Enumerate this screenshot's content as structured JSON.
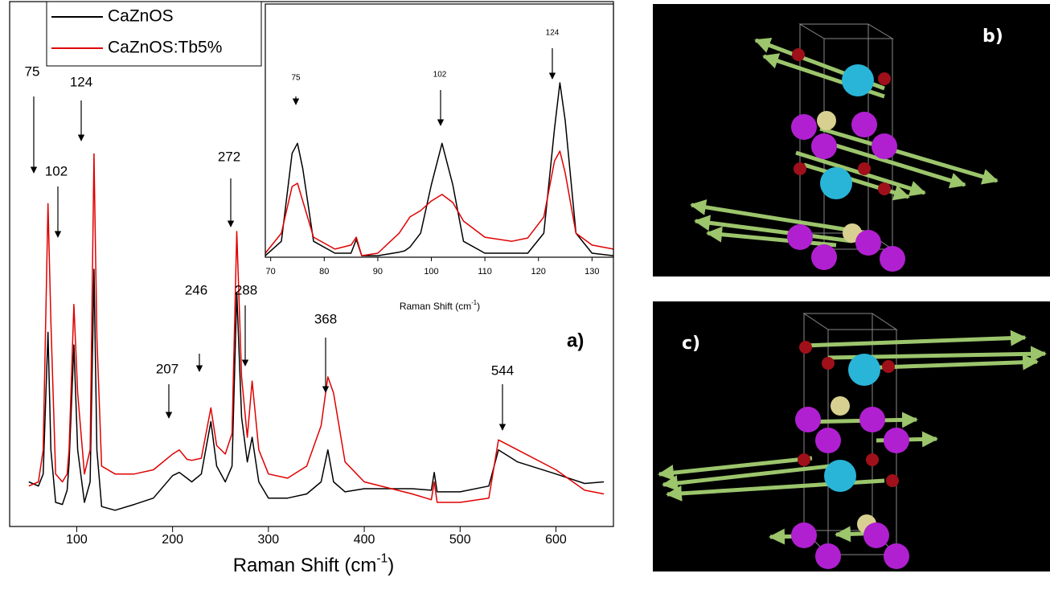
{
  "chart_data": [
    {
      "type": "line",
      "panel_label": "a)",
      "xlabel": {
        "text": "Raman Shift (cm",
        "sup": "-1",
        "end": ")"
      },
      "xlim": [
        30,
        660
      ],
      "xticks": [
        100,
        200,
        300,
        400,
        500,
        600
      ],
      "ylim": [
        0,
        100
      ],
      "annotations": [
        75,
        102,
        124,
        207,
        246,
        272,
        288,
        368,
        544
      ],
      "x": [
        50,
        60,
        65,
        70,
        73,
        78,
        85,
        90,
        92,
        97,
        101,
        108,
        114,
        118,
        121,
        126,
        140,
        160,
        180,
        200,
        207,
        215,
        220,
        230,
        240,
        246,
        255,
        262,
        267,
        272,
        278,
        283,
        290,
        300,
        320,
        340,
        355,
        362,
        368,
        380,
        400,
        450,
        470,
        473,
        476,
        500,
        530,
        540,
        560,
        600,
        630,
        650
      ],
      "series": [
        {
          "name": "CaZnOS",
          "color": "#000000",
          "values": [
            8.5,
            7.7,
            10,
            37,
            14.6,
            4.6,
            4.2,
            6.9,
            12,
            34.6,
            14.6,
            4.6,
            8.5,
            49,
            14.6,
            3.8,
            3.1,
            4.2,
            5.4,
            9.7,
            10.3,
            9.2,
            8.5,
            10,
            20,
            11.5,
            8.5,
            11.5,
            44.6,
            20.8,
            12.3,
            17,
            8.5,
            5.4,
            5.4,
            6.2,
            8.5,
            14.6,
            8.5,
            6.6,
            7.2,
            7.2,
            6.9,
            10.3,
            6.6,
            6.6,
            7.7,
            14.6,
            12.3,
            10,
            8.2,
            8.5
          ]
        },
        {
          "name": "CaZnOS:Tb5%",
          "color": "#e00000",
          "values": [
            7.7,
            8.5,
            14.6,
            61.5,
            39,
            10,
            8.5,
            10,
            14.6,
            42.3,
            25.4,
            10,
            14.6,
            71,
            36,
            11.5,
            10,
            10,
            10.8,
            13.8,
            14.6,
            12.8,
            12.6,
            13,
            22.6,
            15.4,
            13.8,
            17.7,
            56.2,
            28.5,
            17,
            27.7,
            14.6,
            10,
            9.2,
            11.5,
            19.2,
            28.5,
            25.4,
            12.3,
            8.5,
            6.2,
            5.1,
            8.5,
            4.6,
            4.6,
            5.4,
            16.5,
            14.6,
            10.8,
            6.9,
            6.2
          ]
        }
      ]
    },
    {
      "type": "line",
      "xlabel": {
        "text": "Raman Shift (cm",
        "sup": "-1",
        "end": ")"
      },
      "xlim": [
        69,
        134
      ],
      "xticks": [
        70,
        80,
        90,
        100,
        110,
        120,
        130
      ],
      "ylim": [
        0,
        100
      ],
      "annotations": [
        75,
        102,
        124
      ],
      "x": [
        69,
        72,
        74,
        75,
        76,
        78,
        82,
        85,
        86,
        87,
        90,
        94,
        95,
        96,
        98,
        100,
        102,
        104,
        106,
        110,
        115,
        118,
        121,
        123,
        124,
        125,
        127,
        130,
        134
      ],
      "series": [
        {
          "color": "#000000",
          "values": [
            0.6,
            6.3,
            41,
            45,
            35,
            6.3,
            1.6,
            1.6,
            7,
            0.6,
            0.6,
            2,
            2.5,
            4,
            9.5,
            28.6,
            45,
            28.6,
            6.3,
            1.6,
            1.6,
            1.6,
            9.5,
            50.8,
            68.9,
            54,
            9.5,
            1.6,
            0.6
          ]
        },
        {
          "color": "#e00000",
          "values": [
            1.6,
            9.5,
            27.9,
            29.2,
            22.2,
            7.9,
            3.2,
            4.8,
            7.9,
            0.6,
            1.6,
            9.5,
            12.7,
            15.9,
            18.4,
            22.2,
            24.8,
            21.6,
            14.3,
            7.9,
            6.3,
            7.6,
            15.9,
            38,
            41.9,
            33.3,
            9.5,
            4.8,
            3.2
          ]
        }
      ]
    }
  ],
  "panels": [
    {
      "label": "b)"
    },
    {
      "label": "c)"
    }
  ]
}
